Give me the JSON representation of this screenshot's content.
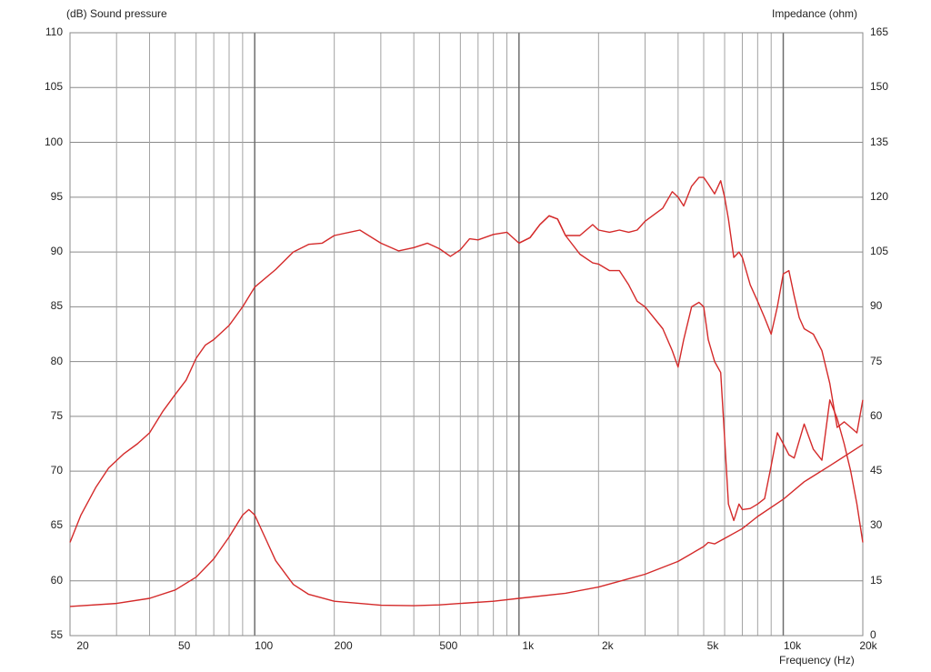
{
  "chart_data": {
    "type": "line",
    "y_label_left": "(dB)  Sound pressure",
    "y_label_right": "Impedance  (ohm)",
    "x_label": "Frequency  (Hz)",
    "x_scale": "log",
    "xlim": [
      20,
      20000
    ],
    "ylim_left": [
      55,
      110
    ],
    "ylim_right": [
      0,
      165
    ],
    "grid": true,
    "y_ticks_left": [
      "110",
      "105",
      "100",
      "95",
      "90",
      "85",
      "80",
      "75",
      "70",
      "65",
      "60",
      "55"
    ],
    "y_ticks_right": [
      "165",
      "150",
      "135",
      "120",
      "105",
      "90",
      "75",
      "60",
      "45",
      "30",
      "15",
      "0"
    ],
    "x_ticks": [
      {
        "value": 20,
        "label": "20"
      },
      {
        "value": 50,
        "label": "50"
      },
      {
        "value": 100,
        "label": "100"
      },
      {
        "value": 200,
        "label": "200"
      },
      {
        "value": 500,
        "label": "500"
      },
      {
        "value": 1000,
        "label": "1k"
      },
      {
        "value": 2000,
        "label": "2k"
      },
      {
        "value": 5000,
        "label": "5k"
      },
      {
        "value": 10000,
        "label": "10k"
      },
      {
        "value": 20000,
        "label": "20k"
      }
    ],
    "series": [
      {
        "axis": "left",
        "color": "#d42a2a",
        "x": [
          20,
          22,
          25,
          28,
          32,
          36,
          40,
          45,
          50,
          55,
          60,
          65,
          70,
          80,
          90,
          100,
          120,
          140,
          160,
          180,
          200,
          250,
          300,
          350,
          400,
          450,
          500,
          550,
          600,
          650,
          700,
          800,
          900,
          1000,
          1100,
          1200,
          1300,
          1400,
          1500,
          1700,
          1900,
          2000,
          2200,
          2400,
          2600,
          2800,
          3000,
          3500,
          3800,
          4000,
          4200,
          4500,
          4800,
          5000,
          5200,
          5500,
          5800,
          6000,
          6200,
          6500,
          6800,
          7000,
          7500,
          8000,
          8500,
          9000,
          9500,
          10000,
          10500,
          11000,
          12000,
          13000,
          14000,
          15000,
          16000,
          17000,
          18000,
          19000,
          20000
        ],
        "values": [
          63.5,
          66,
          68.5,
          70.3,
          71.6,
          72.5,
          73.5,
          75.5,
          77,
          78.3,
          80.3,
          81.5,
          82,
          83.3,
          85,
          86.8,
          88.4,
          90,
          90.7,
          90.8,
          91.5,
          92,
          90.8,
          90.1,
          90.4,
          90.8,
          90.3,
          89.6,
          90.2,
          91.2,
          91.1,
          91.6,
          91.8,
          90.8,
          91.3,
          92.5,
          93.3,
          93,
          91.5,
          89.8,
          89,
          88.9,
          88.3,
          88.3,
          87,
          85.5,
          85,
          83,
          81,
          79.5,
          82,
          85,
          85.4,
          85,
          82,
          80,
          79,
          73,
          67,
          65.5,
          67,
          66.5,
          66.6,
          67,
          67.5,
          70.5,
          73.5,
          72.5,
          71.5,
          71.2,
          74.3,
          72,
          71,
          76.5,
          74.8,
          72.5,
          70,
          67,
          63.5
        ]
      },
      {
        "axis": "left",
        "color": "#d42a2a",
        "x": [
          1000,
          1100,
          1200,
          1300,
          1400,
          1500,
          1700,
          1900,
          2000,
          2200,
          2400,
          2600,
          2800,
          3000,
          3500,
          3800,
          4000,
          4200,
          4500,
          4800,
          5000,
          5200,
          5500,
          5800,
          6000,
          6200,
          6500,
          6800,
          7000,
          7500,
          8000,
          8500,
          9000,
          9500,
          10000,
          10500,
          11000,
          11500,
          12000,
          13000,
          14000,
          15000,
          16000,
          17000,
          18000,
          19000,
          20000
        ],
        "values": [
          90.8,
          91.3,
          92.5,
          93.3,
          93,
          91.5,
          91.5,
          92.5,
          92,
          91.8,
          92,
          91.8,
          92,
          92.8,
          94,
          95.5,
          95,
          94.2,
          96,
          96.8,
          96.8,
          96.2,
          95.3,
          96.5,
          95,
          93,
          89.5,
          90,
          89.5,
          87,
          85.5,
          84,
          82.5,
          85,
          88,
          88.3,
          86,
          84,
          83,
          82.5,
          81,
          78,
          74,
          74.5,
          74,
          73.5,
          76.5
        ]
      },
      {
        "axis": "right",
        "color": "#d42a2a",
        "x": [
          20,
          30,
          40,
          50,
          60,
          70,
          80,
          90,
          95,
          100,
          110,
          120,
          140,
          160,
          200,
          300,
          400,
          500,
          600,
          800,
          1000,
          1500,
          2000,
          3000,
          4000,
          5000,
          5200,
          5500,
          6000,
          7000,
          8000,
          10000,
          12000,
          15000,
          20000
        ],
        "values": [
          8,
          8.8,
          10.2,
          12.5,
          16,
          21,
          27,
          33,
          34.5,
          33,
          26.5,
          20.5,
          14,
          11.3,
          9.4,
          8.3,
          8.2,
          8.4,
          8.8,
          9.4,
          10.2,
          11.6,
          13.3,
          16.8,
          20.3,
          24.4,
          25.5,
          25.1,
          26.6,
          29.3,
          32.6,
          37.3,
          42.1,
          46.5,
          52.3
        ]
      }
    ]
  }
}
